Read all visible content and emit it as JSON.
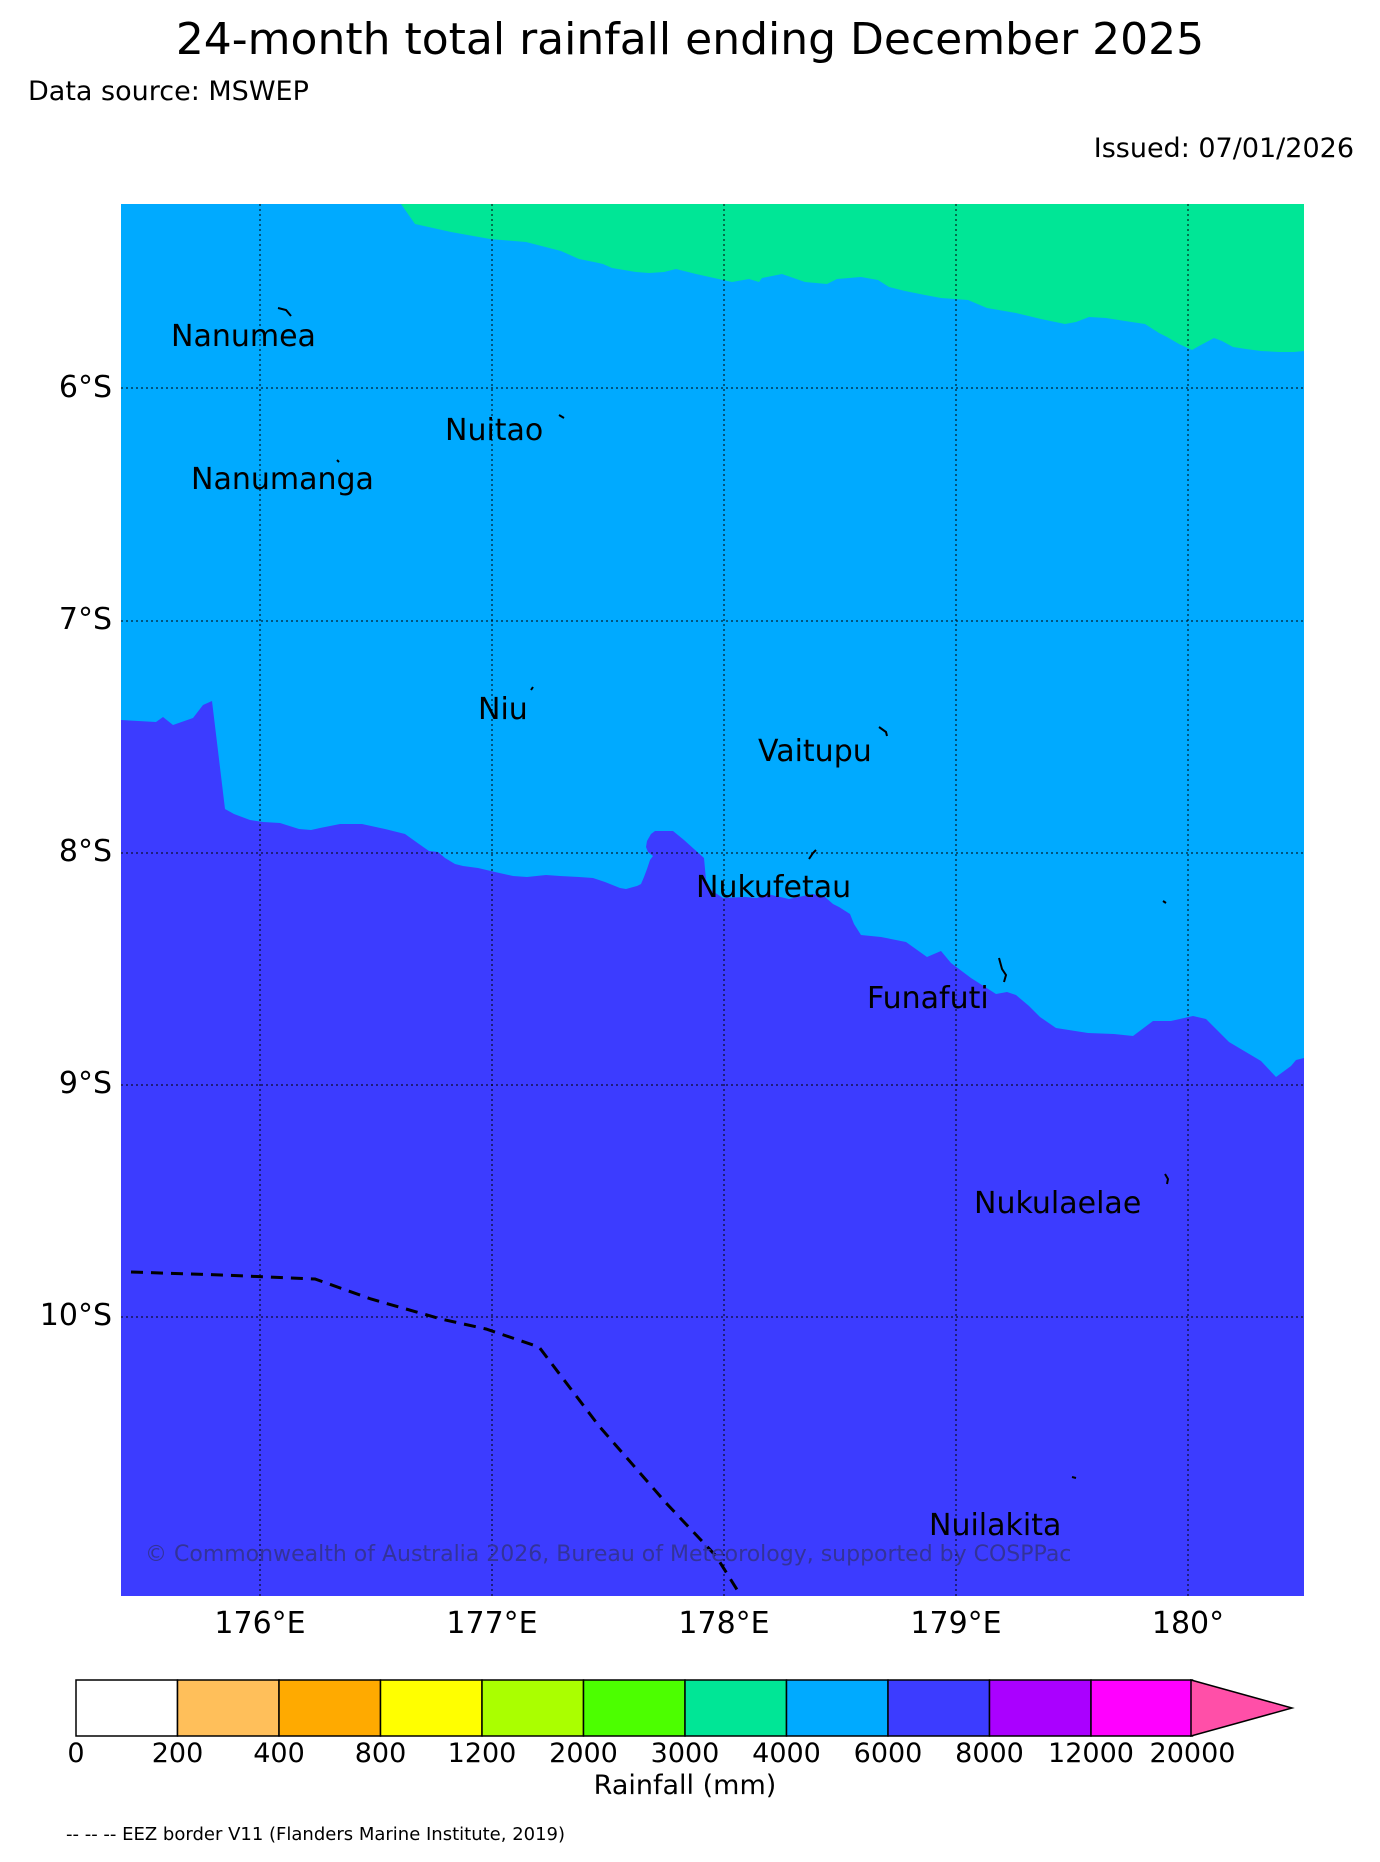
{
  "title": "24-month total rainfall ending December 2025",
  "data_source": "Data source: MSWEP",
  "issued": "Issued: 07/01/2026",
  "copyright": "© Commonwealth of Australia 2026, Bureau of Meteorology, supported by COSPPac",
  "footnote": "-- -- -- EEZ border V11 (Flanders Marine Institute, 2019)",
  "axes": {
    "lat_labels": [
      "6°S",
      "7°S",
      "8°S",
      "9°S",
      "10°S"
    ],
    "lon_labels": [
      "176°E",
      "177°E",
      "178°E",
      "179°E",
      "180°"
    ]
  },
  "islands": [
    {
      "name": "Nanumea"
    },
    {
      "name": "Nuitao"
    },
    {
      "name": "Nanumanga"
    },
    {
      "name": "Niu"
    },
    {
      "name": "Vaitupu"
    },
    {
      "name": "Nukufetau"
    },
    {
      "name": "Funafuti"
    },
    {
      "name": "Nukulaelae"
    },
    {
      "name": "Nuilakita"
    }
  ],
  "colorbar": {
    "title": "Rainfall (mm)",
    "ticks": [
      "0",
      "200",
      "400",
      "800",
      "1200",
      "2000",
      "3000",
      "4000",
      "6000",
      "8000",
      "12000",
      "20000"
    ],
    "colors": [
      "#ffffff",
      "#ffbf5a",
      "#ffaa00",
      "#ffff00",
      "#aaff00",
      "#4cff00",
      "#00e696",
      "#00aaff",
      "#3c3cff",
      "#aa00ff",
      "#ff00ff",
      "#ff4fa8"
    ]
  },
  "colors": {
    "band_3000_4000": "#00e696",
    "band_4000_6000": "#00aaff",
    "band_6000_8000": "#3c3cff"
  }
}
